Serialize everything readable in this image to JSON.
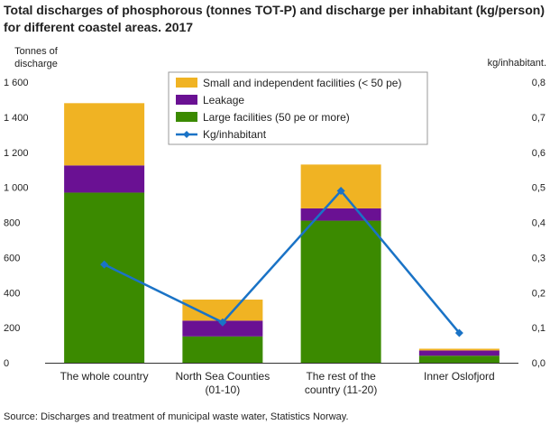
{
  "title": "Total discharges of phosphorous (tonnes TOT-P) and discharge per inhabitant (kg/person) for different coastel areas. 2017",
  "source": "Source: Discharges and treatment of municipal waste water, Statistics Norway.",
  "chart_data": {
    "type": "bar",
    "stacked": true,
    "categories": [
      [
        "The whole country"
      ],
      [
        "North Sea Counties",
        "(01-10)"
      ],
      [
        "The rest of the",
        "country (11-20)"
      ],
      [
        "Inner Oslofjord"
      ]
    ],
    "series": [
      {
        "name": "Large facilities (50 pe or more)",
        "color": "#3b8a00",
        "values": [
          970,
          150,
          810,
          40
        ]
      },
      {
        "name": "Leakage",
        "color": "#6a1193",
        "values": [
          155,
          90,
          70,
          30
        ]
      },
      {
        "name": "Small and independent facilities (< 50 pe)",
        "color": "#f0b323",
        "values": [
          355,
          120,
          250,
          10
        ]
      }
    ],
    "line_series": {
      "name": "Kg/inhabitant",
      "color": "#1a73c6",
      "axis": "right",
      "values": [
        0.28,
        0.115,
        0.49,
        0.085
      ]
    },
    "ylabel_left": [
      "Tonnes of",
      "discharge"
    ],
    "ylabel_right": "kg/inhabitant.",
    "ylim_left": [
      0,
      1600
    ],
    "ylim_right": [
      0,
      0.8
    ],
    "yticks_left": [
      "0",
      "200",
      "400",
      "600",
      "800",
      "1 000",
      "1 200",
      "1 400",
      "1 600"
    ],
    "yticks_right": [
      "0,0",
      "0,1",
      "0,2",
      "0,3",
      "0,4",
      "0,5",
      "0,6",
      "0,7",
      "0,8"
    ],
    "legend_order": [
      "Small and independent facilities (< 50 pe)",
      "Leakage",
      "Large facilities (50 pe or more)",
      "Kg/inhabitant"
    ],
    "legend_position": "top-center",
    "grid": false
  }
}
